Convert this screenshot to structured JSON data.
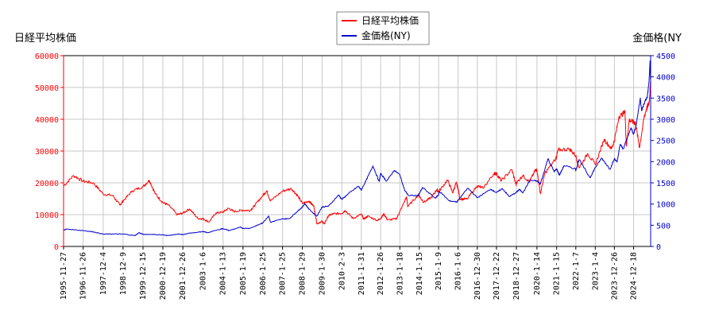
{
  "chart_data": {
    "type": "line",
    "left_axis_title": "日経平均株価",
    "right_axis_title": "金価格(NY",
    "left_ylim": [
      0,
      60000
    ],
    "left_ticks": [
      0,
      10000,
      20000,
      30000,
      40000,
      50000,
      60000
    ],
    "right_ylim": [
      0,
      4500
    ],
    "right_ticks": [
      0,
      500,
      1000,
      1500,
      2000,
      2500,
      3000,
      3500,
      4000,
      4500
    ],
    "x_range": [
      "1995-11-27",
      "2025-10-31"
    ],
    "x_ticks": [
      "1995-11-27",
      "1996-11-26",
      "1997-12-4",
      "1998-12-9",
      "1999-12-15",
      "2000-12-19",
      "2001-12-26",
      "2003-1-6",
      "2004-1-13",
      "2005-1-19",
      "2006-1-25",
      "2007-1-25",
      "2008-1-29",
      "2009-1-30",
      "2010-2-3",
      "2011-1-31",
      "2012-1-26",
      "2013-1-18",
      "2014-1-15",
      "2015-1-9",
      "2016-1-6",
      "2016-12-30",
      "2017-12-22",
      "2018-12-27",
      "2020-1-14",
      "2021-1-15",
      "2022-1-7",
      "2023-1-4",
      "2023-12-26",
      "2024-12-18"
    ],
    "grid": true,
    "legend_position": "top-center",
    "series": [
      {
        "name": "日経平均株価",
        "axis": "left",
        "color": "#ff0000",
        "points": [
          [
            "1995-11-27",
            19000
          ],
          [
            "1996-06-01",
            22300
          ],
          [
            "1996-11-26",
            20500
          ],
          [
            "1997-06-01",
            20000
          ],
          [
            "1997-12-04",
            16500
          ],
          [
            "1998-06-01",
            16000
          ],
          [
            "1998-10-09",
            13000
          ],
          [
            "1998-12-09",
            14300
          ],
          [
            "1999-06-01",
            17500
          ],
          [
            "1999-12-15",
            18800
          ],
          [
            "2000-04-12",
            20800
          ],
          [
            "2000-08-01",
            16500
          ],
          [
            "2000-12-19",
            13800
          ],
          [
            "2001-04-01",
            13000
          ],
          [
            "2001-09-15",
            10000
          ],
          [
            "2001-12-26",
            10500
          ],
          [
            "2002-05-01",
            11800
          ],
          [
            "2002-10-01",
            8800
          ],
          [
            "2003-01-06",
            8700
          ],
          [
            "2003-04-28",
            7700
          ],
          [
            "2003-09-01",
            10500
          ],
          [
            "2004-01-13",
            10800
          ],
          [
            "2004-04-26",
            12000
          ],
          [
            "2004-08-01",
            11000
          ],
          [
            "2005-01-19",
            11400
          ],
          [
            "2005-06-01",
            11300
          ],
          [
            "2005-09-01",
            13000
          ],
          [
            "2006-01-25",
            16100
          ],
          [
            "2006-04-07",
            17500
          ],
          [
            "2006-06-14",
            14300
          ],
          [
            "2007-01-25",
            17400
          ],
          [
            "2007-07-09",
            18200
          ],
          [
            "2007-11-01",
            16000
          ],
          [
            "2008-01-29",
            13500
          ],
          [
            "2008-06-01",
            14300
          ],
          [
            "2008-09-01",
            12500
          ],
          [
            "2008-10-27",
            7160
          ],
          [
            "2009-01-30",
            7900
          ],
          [
            "2009-03-10",
            7050
          ],
          [
            "2009-06-01",
            9700
          ],
          [
            "2009-09-01",
            10300
          ],
          [
            "2010-02-03",
            10400
          ],
          [
            "2010-04-05",
            11300
          ],
          [
            "2010-08-31",
            8800
          ],
          [
            "2011-01-31",
            10200
          ],
          [
            "2011-03-15",
            8600
          ],
          [
            "2011-06-01",
            9500
          ],
          [
            "2011-11-25",
            8200
          ],
          [
            "2012-01-26",
            8800
          ],
          [
            "2012-03-27",
            10200
          ],
          [
            "2012-06-04",
            8300
          ],
          [
            "2012-11-14",
            8700
          ],
          [
            "2013-01-18",
            10900
          ],
          [
            "2013-05-22",
            15600
          ],
          [
            "2013-06-13",
            12500
          ],
          [
            "2013-12-30",
            16300
          ],
          [
            "2014-01-15",
            15800
          ],
          [
            "2014-04-11",
            13900
          ],
          [
            "2014-09-01",
            15500
          ],
          [
            "2014-12-08",
            17900
          ],
          [
            "2015-01-09",
            17200
          ],
          [
            "2015-06-24",
            20900
          ],
          [
            "2015-09-29",
            16900
          ],
          [
            "2015-12-01",
            20000
          ],
          [
            "2016-01-06",
            18300
          ],
          [
            "2016-02-12",
            14900
          ],
          [
            "2016-06-24",
            14900
          ],
          [
            "2016-12-30",
            19100
          ],
          [
            "2017-04-14",
            18300
          ],
          [
            "2017-11-09",
            23000
          ],
          [
            "2017-12-22",
            22900
          ],
          [
            "2018-03-23",
            20600
          ],
          [
            "2018-10-02",
            24200
          ],
          [
            "2018-12-25",
            19200
          ],
          [
            "2018-12-27",
            20000
          ],
          [
            "2019-04-25",
            22300
          ],
          [
            "2019-08-26",
            20300
          ],
          [
            "2019-12-17",
            24000
          ],
          [
            "2020-01-14",
            24000
          ],
          [
            "2020-03-19",
            16550
          ],
          [
            "2020-06-08",
            23000
          ],
          [
            "2020-12-29",
            27500
          ],
          [
            "2021-01-15",
            28500
          ],
          [
            "2021-02-16",
            30400
          ],
          [
            "2021-09-14",
            30600
          ],
          [
            "2022-01-07",
            28500
          ],
          [
            "2022-03-09",
            24700
          ],
          [
            "2022-08-17",
            29200
          ],
          [
            "2023-01-04",
            25700
          ],
          [
            "2023-06-19",
            33700
          ],
          [
            "2023-10-30",
            30700
          ],
          [
            "2023-12-26",
            33300
          ],
          [
            "2024-03-22",
            40900
          ],
          [
            "2024-07-11",
            42200
          ],
          [
            "2024-08-05",
            31500
          ],
          [
            "2024-09-27",
            39800
          ],
          [
            "2024-12-18",
            39000
          ],
          [
            "2025-01-20",
            38900
          ],
          [
            "2025-04-07",
            31100
          ],
          [
            "2025-06-30",
            40500
          ],
          [
            "2025-08-15",
            43300
          ],
          [
            "2025-09-30",
            45000
          ],
          [
            "2025-10-20",
            49000
          ],
          [
            "2025-10-31",
            52400
          ]
        ]
      },
      {
        "name": "金価格(NY)",
        "axis": "right",
        "color": "#0000cd",
        "points": [
          [
            "1995-11-27",
            387
          ],
          [
            "1996-02-01",
            410
          ],
          [
            "1996-11-26",
            375
          ],
          [
            "1997-06-01",
            345
          ],
          [
            "1997-12-04",
            290
          ],
          [
            "1998-06-01",
            295
          ],
          [
            "1998-12-09",
            292
          ],
          [
            "1999-07-20",
            255
          ],
          [
            "1999-10-01",
            325
          ],
          [
            "1999-12-15",
            285
          ],
          [
            "2000-06-01",
            285
          ],
          [
            "2000-12-19",
            272
          ],
          [
            "2001-04-01",
            257
          ],
          [
            "2001-09-15",
            290
          ],
          [
            "2001-12-26",
            280
          ],
          [
            "2002-06-01",
            320
          ],
          [
            "2003-01-06",
            350
          ],
          [
            "2003-04-01",
            325
          ],
          [
            "2003-12-01",
            410
          ],
          [
            "2004-01-13",
            420
          ],
          [
            "2004-05-10",
            375
          ],
          [
            "2004-12-01",
            455
          ],
          [
            "2005-01-19",
            425
          ],
          [
            "2005-06-01",
            430
          ],
          [
            "2005-12-12",
            530
          ],
          [
            "2006-01-25",
            560
          ],
          [
            "2006-05-12",
            720
          ],
          [
            "2006-06-14",
            570
          ],
          [
            "2007-01-25",
            650
          ],
          [
            "2007-06-01",
            655
          ],
          [
            "2007-11-07",
            840
          ],
          [
            "2008-01-29",
            930
          ],
          [
            "2008-03-17",
            1010
          ],
          [
            "2008-06-01",
            880
          ],
          [
            "2008-10-24",
            712
          ],
          [
            "2009-01-30",
            930
          ],
          [
            "2009-06-01",
            950
          ],
          [
            "2009-12-03",
            1215
          ],
          [
            "2010-02-03",
            1110
          ],
          [
            "2010-06-01",
            1240
          ],
          [
            "2010-12-07",
            1420
          ],
          [
            "2011-01-31",
            1330
          ],
          [
            "2011-05-01",
            1560
          ],
          [
            "2011-09-06",
            1900
          ],
          [
            "2011-12-29",
            1530
          ],
          [
            "2012-01-26",
            1720
          ],
          [
            "2012-05-16",
            1540
          ],
          [
            "2012-10-04",
            1795
          ],
          [
            "2013-01-18",
            1690
          ],
          [
            "2013-04-15",
            1330
          ],
          [
            "2013-06-28",
            1200
          ],
          [
            "2013-12-31",
            1200
          ],
          [
            "2014-01-15",
            1245
          ],
          [
            "2014-03-17",
            1390
          ],
          [
            "2014-11-06",
            1140
          ],
          [
            "2015-01-09",
            1215
          ],
          [
            "2015-01-22",
            1305
          ],
          [
            "2015-07-24",
            1075
          ],
          [
            "2015-12-17",
            1050
          ],
          [
            "2016-01-06",
            1090
          ],
          [
            "2016-07-06",
            1375
          ],
          [
            "2016-12-30",
            1150
          ],
          [
            "2017-09-08",
            1350
          ],
          [
            "2017-12-22",
            1270
          ],
          [
            "2018-04-11",
            1365
          ],
          [
            "2018-08-16",
            1175
          ],
          [
            "2018-12-27",
            1275
          ],
          [
            "2019-02-20",
            1345
          ],
          [
            "2019-05-01",
            1270
          ],
          [
            "2019-09-04",
            1560
          ],
          [
            "2020-01-14",
            1545
          ],
          [
            "2020-03-19",
            1475
          ],
          [
            "2020-08-06",
            2070
          ],
          [
            "2020-11-30",
            1765
          ],
          [
            "2021-01-15",
            1830
          ],
          [
            "2021-03-08",
            1680
          ],
          [
            "2021-06-01",
            1905
          ],
          [
            "2021-12-31",
            1830
          ],
          [
            "2022-01-07",
            1795
          ],
          [
            "2022-03-08",
            2050
          ],
          [
            "2022-09-28",
            1620
          ],
          [
            "2023-01-04",
            1860
          ],
          [
            "2023-05-04",
            2085
          ],
          [
            "2023-10-05",
            1820
          ],
          [
            "2023-12-26",
            2070
          ],
          [
            "2024-02-14",
            1990
          ],
          [
            "2024-04-12",
            2410
          ],
          [
            "2024-06-07",
            2300
          ],
          [
            "2024-10-30",
            2800
          ],
          [
            "2024-12-18",
            2650
          ],
          [
            "2025-01-31",
            2835
          ],
          [
            "2025-04-21",
            3500
          ],
          [
            "2025-05-15",
            3200
          ],
          [
            "2025-07-23",
            3440
          ],
          [
            "2025-08-29",
            3520
          ],
          [
            "2025-09-30",
            3870
          ],
          [
            "2025-10-20",
            4380
          ],
          [
            "2025-10-28",
            3950
          ],
          [
            "2025-10-31",
            4030
          ]
        ]
      }
    ]
  }
}
